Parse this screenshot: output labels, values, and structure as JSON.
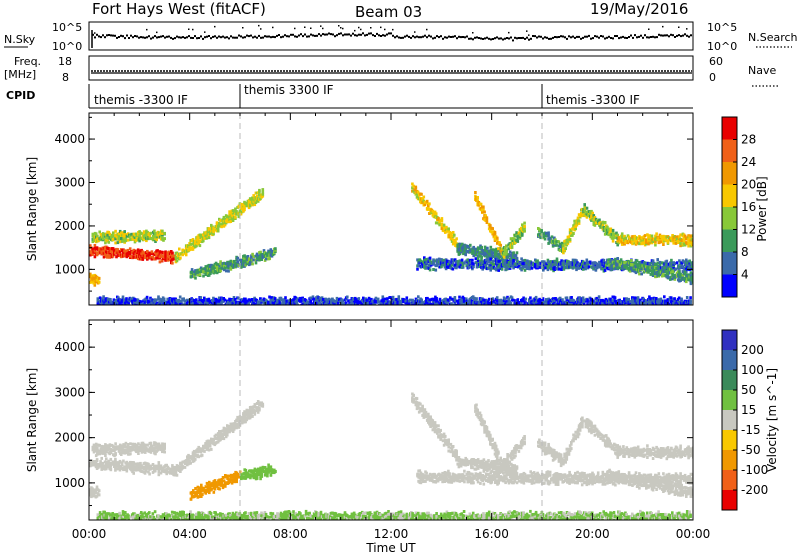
{
  "header": {
    "radar": "Fort Hays West (fitACF)",
    "beam": "Beam 03",
    "date": "19/May/2016"
  },
  "params": {
    "nsky_label": "N.Sky",
    "nsearch_label": "N.Search",
    "freq_label_1": "Freq.",
    "freq_label_2": "[MHz]",
    "nave_label": "Nave",
    "cpid_label": "CPID",
    "noise_ticks": [
      "10^5",
      "10^0"
    ],
    "freq_ticks": [
      "18",
      "8"
    ],
    "nave_ticks": [
      "60",
      "0"
    ],
    "cpid_segments": [
      {
        "start_hour": 0,
        "label": "themis -3300 IF"
      },
      {
        "start_hour": 6,
        "label": "themis 3300 IF"
      },
      {
        "start_hour": 18,
        "label": "themis -3300 IF"
      }
    ]
  },
  "chart_data": [
    {
      "type": "heatmap",
      "quantity": "Power",
      "ylabel": "Slant Range [km]",
      "colorbar_label": "Power [dB]",
      "colorbar_ticks": [
        "28",
        "24",
        "20",
        "16",
        "12",
        "8",
        "4"
      ],
      "colorbar_colors": [
        "#e80000",
        "#f06018",
        "#f09800",
        "#f8c800",
        "#88c838",
        "#3a9a5a",
        "#3a6aaa",
        "#0000ff"
      ],
      "xlim": [
        0,
        24
      ],
      "ylim": [
        180,
        4600
      ],
      "yticks": [
        "1000",
        "2000",
        "3000",
        "4000"
      ],
      "bands": [
        {
          "start_hour": 0.0,
          "end_hour": 3.4,
          "range_km_start": 1450,
          "range_km_end": 1300,
          "dB": 28
        },
        {
          "start_hour": 3.4,
          "end_hour": 6.9,
          "range_km_start": 1300,
          "range_km_end": 2800,
          "dB": 16
        },
        {
          "start_hour": 0.1,
          "end_hour": 3.0,
          "range_km_start": 1750,
          "range_km_end": 1800,
          "dB": 14
        },
        {
          "start_hour": 0.0,
          "end_hour": 0.4,
          "range_km_start": 800,
          "range_km_end": 800,
          "dB": 20
        },
        {
          "start_hour": 4.0,
          "end_hour": 7.4,
          "range_km_start": 900,
          "range_km_end": 1400,
          "dB": 10
        },
        {
          "start_hour": 12.8,
          "end_hour": 14.6,
          "range_km_start": 2900,
          "range_km_end": 1600,
          "dB": 18
        },
        {
          "start_hour": 14.6,
          "end_hour": 17.0,
          "range_km_start": 1500,
          "range_km_end": 1300,
          "dB": 8
        },
        {
          "start_hour": 15.3,
          "end_hour": 16.4,
          "range_km_start": 2700,
          "range_km_end": 1400,
          "dB": 20
        },
        {
          "start_hour": 16.4,
          "end_hour": 17.3,
          "range_km_start": 1400,
          "range_km_end": 2000,
          "dB": 14
        },
        {
          "start_hour": 17.8,
          "end_hour": 18.8,
          "range_km_start": 1900,
          "range_km_end": 1500,
          "dB": 10
        },
        {
          "start_hour": 18.8,
          "end_hour": 19.6,
          "range_km_start": 1500,
          "range_km_end": 2400,
          "dB": 16
        },
        {
          "start_hour": 19.6,
          "end_hour": 21.0,
          "range_km_start": 2400,
          "range_km_end": 1700,
          "dB": 14
        },
        {
          "start_hour": 21.0,
          "end_hour": 24.0,
          "range_km_start": 1700,
          "range_km_end": 1700,
          "dB": 18
        },
        {
          "start_hour": 13.0,
          "end_hour": 24.0,
          "range_km_start": 1150,
          "range_km_end": 1100,
          "dB": 6
        },
        {
          "start_hour": 20.5,
          "end_hour": 24.0,
          "range_km_start": 1200,
          "range_km_end": 800,
          "dB": 10
        },
        {
          "start_hour": 0.3,
          "end_hour": 23.9,
          "range_km_start": 250,
          "range_km_end": 250,
          "dB": 4
        }
      ]
    },
    {
      "type": "heatmap",
      "quantity": "Velocity",
      "ylabel": "Slant Range [km]",
      "colorbar_label": "Velocity [m s^-1]",
      "colorbar_ticks": [
        "200",
        "100",
        "50",
        "15",
        "-15",
        "-50",
        "-100",
        "-200"
      ],
      "colorbar_colors": [
        "#3030c0",
        "#3a6aaa",
        "#3a8a5a",
        "#70c040",
        "#c8c8c0",
        "#f8c800",
        "#f09800",
        "#f06018",
        "#e80000"
      ],
      "xlim": [
        0,
        24
      ],
      "ylim": [
        180,
        4600
      ],
      "yticks": [
        "1000",
        "2000",
        "3000",
        "4000"
      ],
      "xticks": [
        "00:00",
        "04:00",
        "08:00",
        "12:00",
        "16:00",
        "20:00",
        "00:00"
      ],
      "xlabel": "Time UT",
      "bands": [
        {
          "start_hour": 0.0,
          "end_hour": 3.4,
          "range_km_start": 1450,
          "range_km_end": 1300,
          "v": 0
        },
        {
          "start_hour": 3.4,
          "end_hour": 6.9,
          "range_km_start": 1300,
          "range_km_end": 2800,
          "v": 0
        },
        {
          "start_hour": 0.1,
          "end_hour": 3.0,
          "range_km_start": 1750,
          "range_km_end": 1800,
          "v": 0
        },
        {
          "start_hour": 0.0,
          "end_hour": 0.4,
          "range_km_start": 800,
          "range_km_end": 800,
          "v": 0
        },
        {
          "start_hour": 4.0,
          "end_hour": 6.0,
          "range_km_start": 750,
          "range_km_end": 1200,
          "v": -80
        },
        {
          "start_hour": 6.0,
          "end_hour": 7.4,
          "range_km_start": 1200,
          "range_km_end": 1300,
          "v": 30
        },
        {
          "start_hour": 12.8,
          "end_hour": 14.6,
          "range_km_start": 2900,
          "range_km_end": 1600,
          "v": 0
        },
        {
          "start_hour": 14.6,
          "end_hour": 17.0,
          "range_km_start": 1500,
          "range_km_end": 1300,
          "v": 0
        },
        {
          "start_hour": 15.3,
          "end_hour": 16.4,
          "range_km_start": 2700,
          "range_km_end": 1400,
          "v": 0
        },
        {
          "start_hour": 16.4,
          "end_hour": 17.3,
          "range_km_start": 1400,
          "range_km_end": 2000,
          "v": 0
        },
        {
          "start_hour": 17.8,
          "end_hour": 18.8,
          "range_km_start": 1900,
          "range_km_end": 1500,
          "v": 0
        },
        {
          "start_hour": 18.8,
          "end_hour": 19.6,
          "range_km_start": 1500,
          "range_km_end": 2400,
          "v": 0
        },
        {
          "start_hour": 19.6,
          "end_hour": 21.0,
          "range_km_start": 2400,
          "range_km_end": 1700,
          "v": 0
        },
        {
          "start_hour": 21.0,
          "end_hour": 24.0,
          "range_km_start": 1700,
          "range_km_end": 1700,
          "v": 0
        },
        {
          "start_hour": 13.0,
          "end_hour": 24.0,
          "range_km_start": 1150,
          "range_km_end": 1100,
          "v": 0
        },
        {
          "start_hour": 20.5,
          "end_hour": 24.0,
          "range_km_start": 1200,
          "range_km_end": 800,
          "v": 0
        },
        {
          "start_hour": 0.3,
          "end_hour": 23.9,
          "range_km_start": 250,
          "range_km_end": 250,
          "v": 20
        }
      ]
    }
  ]
}
